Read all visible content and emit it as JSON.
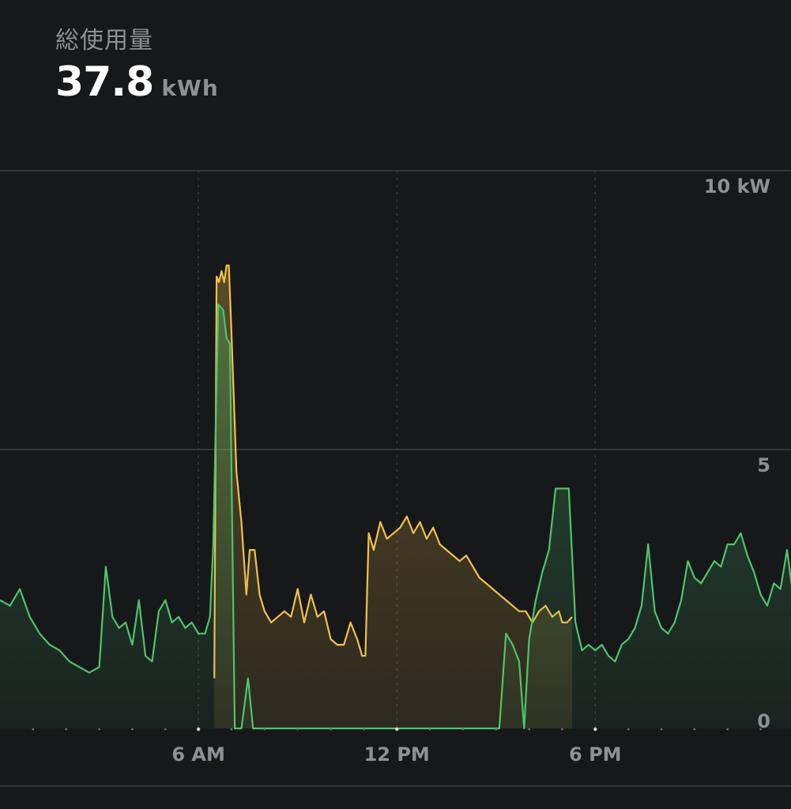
{
  "summary": {
    "label": "総使用量",
    "value": "37.8",
    "unit": "kWh"
  },
  "colors": {
    "background": "#17181a",
    "grid": "#3f4043",
    "axis_text": "#8f9095",
    "series_yellow": "#f2c14a",
    "series_green": "#4cc46d"
  },
  "chart_data": {
    "type": "area",
    "xlabel": "",
    "ylabel": "",
    "y_unit": "kW",
    "ylim": [
      0,
      10
    ],
    "y_ticks": [
      {
        "value": 10,
        "label": "10 kW"
      },
      {
        "value": 5,
        "label": "5"
      },
      {
        "value": 0,
        "label": "0"
      }
    ],
    "xlim": [
      0,
      24
    ],
    "x_ticks": [
      {
        "value": 6,
        "label": "6 AM"
      },
      {
        "value": 12,
        "label": "12 PM"
      },
      {
        "value": 18,
        "label": "6 PM"
      }
    ],
    "grid": true,
    "legend": "none",
    "series": [
      {
        "color": "#f2c14a",
        "points": [
          [
            6.48,
            0.9
          ],
          [
            6.55,
            8.1
          ],
          [
            6.62,
            8.0
          ],
          [
            6.7,
            8.2
          ],
          [
            6.78,
            8.0
          ],
          [
            6.85,
            8.3
          ],
          [
            6.92,
            8.3
          ],
          [
            7.0,
            7.1
          ],
          [
            7.15,
            4.6
          ],
          [
            7.3,
            3.7
          ],
          [
            7.45,
            2.4
          ],
          [
            7.55,
            3.2
          ],
          [
            7.7,
            3.2
          ],
          [
            7.85,
            2.4
          ],
          [
            8.0,
            2.1
          ],
          [
            8.2,
            1.9
          ],
          [
            8.4,
            2.0
          ],
          [
            8.6,
            2.1
          ],
          [
            8.8,
            2.0
          ],
          [
            9.0,
            2.5
          ],
          [
            9.2,
            1.9
          ],
          [
            9.4,
            2.4
          ],
          [
            9.6,
            2.0
          ],
          [
            9.8,
            2.1
          ],
          [
            10.0,
            1.6
          ],
          [
            10.2,
            1.5
          ],
          [
            10.4,
            1.5
          ],
          [
            10.6,
            1.9
          ],
          [
            10.8,
            1.6
          ],
          [
            10.95,
            1.3
          ],
          [
            11.05,
            1.3
          ],
          [
            11.15,
            3.5
          ],
          [
            11.3,
            3.2
          ],
          [
            11.5,
            3.7
          ],
          [
            11.7,
            3.4
          ],
          [
            11.9,
            3.5
          ],
          [
            12.1,
            3.6
          ],
          [
            12.3,
            3.8
          ],
          [
            12.5,
            3.5
          ],
          [
            12.7,
            3.7
          ],
          [
            12.9,
            3.4
          ],
          [
            13.1,
            3.6
          ],
          [
            13.3,
            3.3
          ],
          [
            13.5,
            3.2
          ],
          [
            13.7,
            3.1
          ],
          [
            13.9,
            3.0
          ],
          [
            14.1,
            3.1
          ],
          [
            14.3,
            2.9
          ],
          [
            14.5,
            2.7
          ],
          [
            14.7,
            2.6
          ],
          [
            14.9,
            2.5
          ],
          [
            15.1,
            2.4
          ],
          [
            15.3,
            2.3
          ],
          [
            15.5,
            2.2
          ],
          [
            15.7,
            2.1
          ],
          [
            15.9,
            2.1
          ],
          [
            16.1,
            1.9
          ],
          [
            16.3,
            2.1
          ],
          [
            16.5,
            2.2
          ],
          [
            16.7,
            2.0
          ],
          [
            16.9,
            2.1
          ],
          [
            17.0,
            1.9
          ],
          [
            17.15,
            1.9
          ],
          [
            17.3,
            2.0
          ]
        ]
      },
      {
        "color": "#4cc46d",
        "points": [
          [
            0.0,
            2.3
          ],
          [
            0.3,
            2.2
          ],
          [
            0.6,
            2.5
          ],
          [
            0.9,
            2.0
          ],
          [
            1.2,
            1.7
          ],
          [
            1.5,
            1.5
          ],
          [
            1.8,
            1.4
          ],
          [
            2.1,
            1.2
          ],
          [
            2.4,
            1.1
          ],
          [
            2.7,
            1.0
          ],
          [
            3.0,
            1.1
          ],
          [
            3.2,
            2.9
          ],
          [
            3.4,
            2.0
          ],
          [
            3.6,
            1.8
          ],
          [
            3.8,
            1.9
          ],
          [
            4.0,
            1.5
          ],
          [
            4.2,
            2.3
          ],
          [
            4.4,
            1.3
          ],
          [
            4.6,
            1.2
          ],
          [
            4.8,
            2.1
          ],
          [
            5.0,
            2.3
          ],
          [
            5.2,
            1.9
          ],
          [
            5.4,
            2.0
          ],
          [
            5.6,
            1.8
          ],
          [
            5.8,
            1.9
          ],
          [
            6.0,
            1.7
          ],
          [
            6.2,
            1.7
          ],
          [
            6.35,
            2.0
          ],
          [
            6.45,
            3.3
          ],
          [
            6.6,
            7.6
          ],
          [
            6.75,
            7.5
          ],
          [
            6.85,
            7.0
          ],
          [
            6.95,
            6.9
          ],
          [
            7.1,
            0.0
          ],
          [
            7.3,
            0.0
          ],
          [
            7.5,
            0.9
          ],
          [
            7.65,
            0.0
          ],
          [
            15.1,
            0.0
          ],
          [
            15.3,
            1.7
          ],
          [
            15.5,
            1.5
          ],
          [
            15.7,
            1.2
          ],
          [
            15.85,
            0.0
          ],
          [
            16.0,
            1.6
          ],
          [
            16.2,
            2.3
          ],
          [
            16.4,
            2.8
          ],
          [
            16.6,
            3.2
          ],
          [
            16.8,
            4.3
          ],
          [
            17.0,
            4.3
          ],
          [
            17.2,
            4.3
          ],
          [
            17.4,
            1.9
          ],
          [
            17.6,
            1.4
          ],
          [
            17.8,
            1.5
          ],
          [
            18.0,
            1.4
          ],
          [
            18.2,
            1.5
          ],
          [
            18.4,
            1.3
          ],
          [
            18.6,
            1.2
          ],
          [
            18.8,
            1.5
          ],
          [
            19.0,
            1.6
          ],
          [
            19.2,
            1.8
          ],
          [
            19.4,
            2.2
          ],
          [
            19.6,
            3.3
          ],
          [
            19.8,
            2.1
          ],
          [
            20.0,
            1.8
          ],
          [
            20.2,
            1.7
          ],
          [
            20.4,
            1.9
          ],
          [
            20.6,
            2.3
          ],
          [
            20.8,
            3.0
          ],
          [
            21.0,
            2.7
          ],
          [
            21.2,
            2.6
          ],
          [
            21.4,
            2.8
          ],
          [
            21.6,
            3.0
          ],
          [
            21.8,
            2.9
          ],
          [
            22.0,
            3.3
          ],
          [
            22.2,
            3.3
          ],
          [
            22.4,
            3.5
          ],
          [
            22.6,
            3.1
          ],
          [
            22.8,
            2.8
          ],
          [
            23.0,
            2.4
          ],
          [
            23.2,
            2.2
          ],
          [
            23.4,
            2.6
          ],
          [
            23.6,
            2.5
          ],
          [
            23.8,
            3.2
          ],
          [
            24.0,
            2.3
          ]
        ]
      }
    ]
  }
}
